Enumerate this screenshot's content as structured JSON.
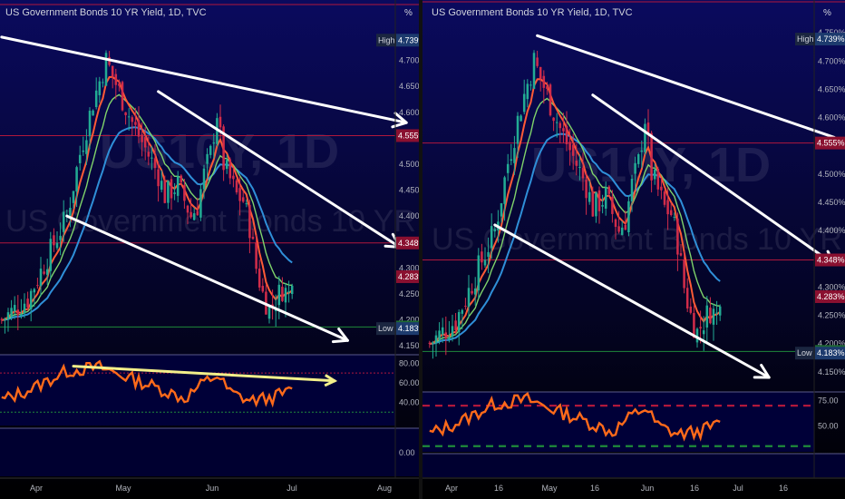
{
  "colors": {
    "bg_top": "#0a0a5e",
    "bg_bottom": "#000000",
    "bull": "#22ab94",
    "bear": "#d12c4a",
    "ema_fast": "#ff5a36",
    "ema_mid": "#7fd36b",
    "ema_slow": "#2f8fd8",
    "rsi_line": "#ff6a1a",
    "resistance_line": "#b0173c",
    "support_line": "#1f8a3a",
    "trend_arrow": "#ffffff",
    "rsi_trend": "#f3f08a",
    "high_label_bg": "#1d3b6e",
    "red_label_bg": "#8a1030",
    "green_label_bg": "#1e6b33",
    "percent_box_bg": "#ffffff"
  },
  "chart_data": [
    {
      "type": "candlestick",
      "title": "US Government Bonds 10 YR Yield, 1D, TVC",
      "watermark": [
        "US10Y, 1D",
        "US Government Bonds 10 YR Yield"
      ],
      "percent_button": "%",
      "price_axis": {
        "ticks": [
          "4.700%",
          "4.650%",
          "4.600%",
          "4.550%",
          "4.500%",
          "4.450%",
          "4.400%",
          "4.350%",
          "4.300%",
          "4.250%",
          "4.200%",
          "4.150%"
        ],
        "range": [
          4.15,
          4.75
        ]
      },
      "level_tags": [
        {
          "text": "High",
          "value": "4.739%",
          "price": 4.739,
          "kind": "high"
        },
        {
          "value": "4.555%",
          "price": 4.555,
          "kind": "red"
        },
        {
          "value": "4.348%",
          "price": 4.348,
          "kind": "red"
        },
        {
          "value": "4.283%",
          "price": 4.283,
          "kind": "red"
        },
        {
          "value": "4.186%",
          "price": 4.186,
          "kind": "green"
        },
        {
          "text": "Low",
          "value": "4.183%",
          "price": 4.183,
          "kind": "low"
        }
      ],
      "hlines": [
        4.555,
        4.348,
        4.186
      ],
      "x_labels": [
        "Apr",
        "May",
        "Jun",
        "Jul",
        "Aug"
      ],
      "rsi": {
        "ticks": [
          "80.00",
          "60.00",
          "40.00"
        ],
        "secondary_tick": "0.00",
        "range": [
          20,
          85
        ],
        "upper": 70,
        "lower": 30
      },
      "trendlines": [
        {
          "from": [
            0.0,
            4.745
          ],
          "to": [
            124.0,
            4.58
          ],
          "arrow": true
        },
        {
          "from": [
            48.0,
            4.64
          ],
          "to": [
            122.0,
            4.34
          ],
          "arrow": true
        },
        {
          "from": [
            20.0,
            4.4
          ],
          "to": [
            106.0,
            4.16
          ],
          "arrow": true
        }
      ],
      "rsi_trendline": {
        "from": [
          22.0,
          77
        ],
        "to": [
          102.0,
          62
        ],
        "arrow": true
      }
    },
    {
      "type": "candlestick",
      "title": "US Government Bonds 10 YR Yield, 1D, TVC",
      "watermark": [
        "US10Y, 1D",
        "US Government Bonds 10 YR Yield"
      ],
      "percent_button": "%",
      "price_axis": {
        "ticks": [
          "4.750%",
          "4.700%",
          "4.650%",
          "4.600%",
          "4.550%",
          "4.500%",
          "4.450%",
          "4.400%",
          "4.350%",
          "4.300%",
          "4.250%",
          "4.200%",
          "4.150%"
        ],
        "range": [
          4.14,
          4.76
        ]
      },
      "level_tags": [
        {
          "text": "High",
          "value": "4.739%",
          "price": 4.739,
          "kind": "high"
        },
        {
          "value": "4.555%",
          "price": 4.555,
          "kind": "red"
        },
        {
          "value": "4.348%",
          "price": 4.348,
          "kind": "red"
        },
        {
          "value": "4.283%",
          "price": 4.283,
          "kind": "red"
        },
        {
          "value": "4.186%",
          "price": 4.186,
          "kind": "green"
        },
        {
          "text": "Low",
          "value": "4.183%",
          "price": 4.183,
          "kind": "low"
        }
      ],
      "hlines": [
        4.555,
        4.348,
        4.186
      ],
      "x_labels": [
        "Apr",
        "16",
        "May",
        "16",
        "Jun",
        "16",
        "Jul",
        "16"
      ],
      "rsi": {
        "ticks": [
          "75.00",
          "50.00"
        ],
        "range": [
          28,
          80
        ],
        "upper": 70,
        "lower": 30
      },
      "trendlines": [
        {
          "from": [
            33.0,
            4.745
          ],
          "to": [
            124.0,
            4.565
          ],
          "arrow": false
        },
        {
          "from": [
            50.0,
            4.64
          ],
          "to": [
            124.0,
            4.34
          ],
          "arrow": true
        },
        {
          "from": [
            20.0,
            4.41
          ],
          "to": [
            104.0,
            4.14
          ],
          "arrow": true
        }
      ]
    }
  ]
}
